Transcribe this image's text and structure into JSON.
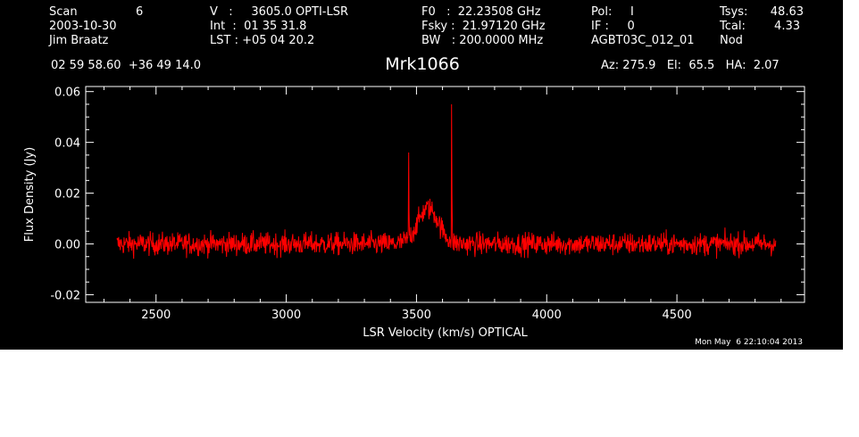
{
  "header": {
    "col1": [
      "Scan",
      "2003-10-30",
      "Jim Braatz"
    ],
    "scan_number": "6",
    "col2": [
      "V   :     3605.0 OPTI-LSR",
      "Int  :  01 35 31.8",
      "LST : +05 04 20.2"
    ],
    "col3": [
      "F0   :  22.23508 GHz",
      "Fsky :  21.97120 GHz",
      "BW   : 200.0000 MHz"
    ],
    "col4": [
      "Pol:     I",
      "IF :     0",
      "AGBT03C_012_01"
    ],
    "col5_labels": [
      "Tsys:",
      "Tcal:",
      "Nod"
    ],
    "col5_values": [
      "48.63",
      "4.33",
      ""
    ],
    "coords": "02 59 58.60  +36 49 14.0",
    "source": "Mrk1066",
    "pointing": "Az: 275.9   El:  65.5   HA:  2.07",
    "timestamp": "Mon May  6 22:10:04 2013"
  },
  "colors": {
    "background": "#000000",
    "axes": "#ffffff",
    "trace": "#ff0000"
  },
  "chart_data": {
    "type": "line",
    "xlabel": "LSR Velocity (km/s) OPTICAL",
    "ylabel": "Flux Density (Jy)",
    "xlim": [
      2230,
      4990
    ],
    "ylim": [
      -0.023,
      0.062
    ],
    "xticks": [
      2500,
      3000,
      3500,
      4000,
      4500
    ],
    "yticks": [
      -0.02,
      0.0,
      0.02,
      0.04,
      0.06
    ],
    "ytick_labels": [
      "-0.02",
      "0.00",
      "0.02",
      "0.04",
      "0.06"
    ],
    "series": [
      {
        "x_range": [
          2350,
          4880
        ],
        "noise_rms": 0.0022,
        "features": [
          {
            "kind": "spike",
            "x": 3470,
            "y": 0.036
          },
          {
            "kind": "spike",
            "x": 3635,
            "y": 0.055
          },
          {
            "kind": "broad",
            "x": 3545,
            "y": 0.014,
            "width_kms": 40
          }
        ]
      }
    ]
  }
}
